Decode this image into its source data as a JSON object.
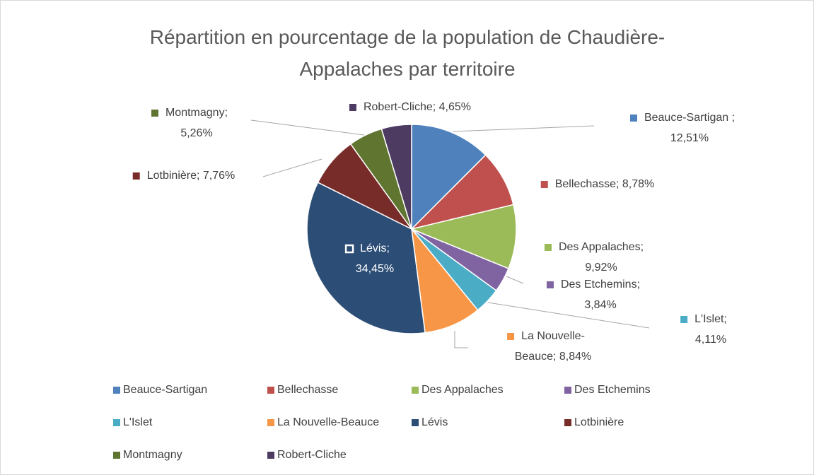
{
  "chart_data": {
    "type": "pie",
    "title": "Répartition en pourcentage de la population de Chaudière-Appalaches par territoire",
    "categories": [
      "Beauce-Sartigan",
      "Bellechasse",
      "Des Appalaches",
      "Des Etchemins",
      "L'Islet",
      "La Nouvelle-Beauce",
      "Lévis",
      "Lotbinière",
      "Montmagny",
      "Robert-Cliche"
    ],
    "values": [
      12.51,
      8.78,
      9.92,
      3.84,
      4.11,
      8.84,
      34.45,
      7.76,
      5.26,
      4.65
    ],
    "value_labels": [
      "Beauce-Sartigan ; 12,51%",
      "Bellechasse; 8,78%",
      "Des Appalaches; 9,92%",
      "Des Etchemins; 3,84%",
      "L'Islet; 4,11%",
      "La Nouvelle-Beauce; 8,84%",
      "Lévis; 34,45%",
      "Lotbinière; 7,76%",
      "Montmagny; 5,26%",
      "Robert-Cliche; 4,65%"
    ],
    "colors": [
      "#4f81bd",
      "#c0504d",
      "#9bbb59",
      "#8064a2",
      "#4bacc6",
      "#f79646",
      "#2c4d75",
      "#772c2a",
      "#5f7530",
      "#4d3b62"
    ],
    "legend": "bottom"
  }
}
